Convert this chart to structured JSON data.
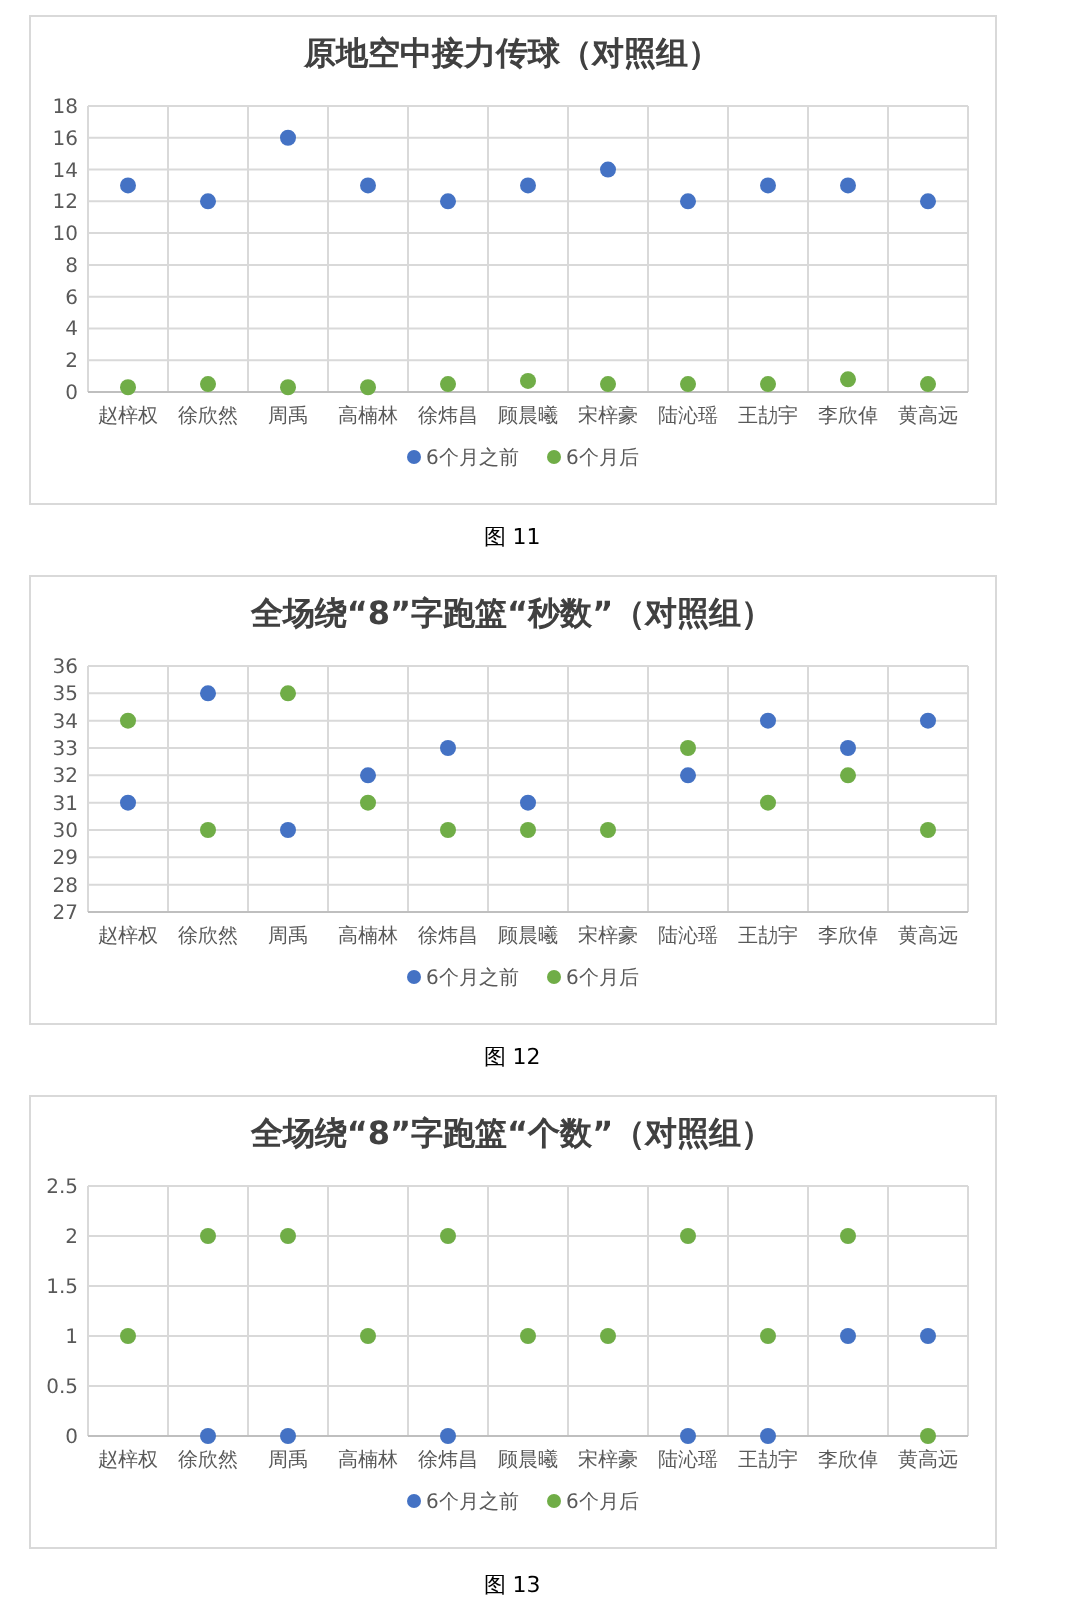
{
  "chart_data": [
    {
      "type": "scatter",
      "title": "原地空中接力传球（对照组）",
      "categories": [
        "赵梓权",
        "徐欣然",
        "周禹",
        "高楠林",
        "徐炜昌",
        "顾晨曦",
        "宋梓豪",
        "陆沁瑶",
        "王劼宇",
        "李欣倬",
        "黄高远"
      ],
      "series": [
        {
          "name": "6个月之前",
          "color": "#4472c4",
          "values": [
            13,
            12,
            16,
            13,
            12,
            13,
            14,
            12,
            13,
            13,
            12
          ]
        },
        {
          "name": "6个月后",
          "color": "#70ad47",
          "values": [
            0.3,
            0.5,
            0.3,
            0.3,
            0.5,
            0.7,
            0.5,
            0.5,
            0.5,
            0.8,
            0.5
          ]
        }
      ],
      "ylim": [
        0,
        18
      ],
      "yticks": [
        0,
        2,
        4,
        6,
        8,
        10,
        12,
        14,
        16,
        18
      ],
      "grid": true,
      "legend": "bottom",
      "marker": "circle",
      "annotations": [
        "图 11"
      ]
    },
    {
      "type": "scatter",
      "title": "全场绕“8”字跑篮“秒数”（对照组）",
      "categories": [
        "赵梓权",
        "徐欣然",
        "周禹",
        "高楠林",
        "徐炜昌",
        "顾晨曦",
        "宋梓豪",
        "陆沁瑶",
        "王劼宇",
        "李欣倬",
        "黄高远"
      ],
      "series": [
        {
          "name": "6个月之前",
          "color": "#4472c4",
          "values": [
            31,
            35,
            30,
            32,
            33,
            31,
            null,
            32,
            34,
            33,
            34
          ]
        },
        {
          "name": "6个月后",
          "color": "#70ad47",
          "values": [
            34,
            30,
            35,
            31,
            30,
            30,
            30,
            33,
            31,
            32,
            30
          ]
        }
      ],
      "ylim": [
        27,
        36
      ],
      "yticks": [
        27,
        28,
        29,
        30,
        31,
        32,
        33,
        34,
        35,
        36
      ],
      "grid": true,
      "legend": "bottom",
      "marker": "circle",
      "annotations": [
        "图 12"
      ]
    },
    {
      "type": "scatter",
      "title": "全场绕“8”字跑篮“个数”（对照组）",
      "categories": [
        "赵梓权",
        "徐欣然",
        "周禹",
        "高楠林",
        "徐炜昌",
        "顾晨曦",
        "宋梓豪",
        "陆沁瑶",
        "王劼宇",
        "李欣倬",
        "黄高远"
      ],
      "series": [
        {
          "name": "6个月之前",
          "color": "#4472c4",
          "values": [
            null,
            0,
            0,
            null,
            0,
            null,
            null,
            0,
            0,
            1,
            1
          ]
        },
        {
          "name": "6个月后",
          "color": "#70ad47",
          "values": [
            1,
            2,
            2,
            1,
            2,
            1,
            1,
            2,
            1,
            2,
            0
          ]
        }
      ],
      "ylim": [
        0,
        2.5
      ],
      "yticks": [
        0,
        0.5,
        1,
        1.5,
        2,
        2.5
      ],
      "grid": true,
      "legend": "bottom",
      "marker": "circle",
      "annotations": [
        "图 13"
      ]
    }
  ]
}
